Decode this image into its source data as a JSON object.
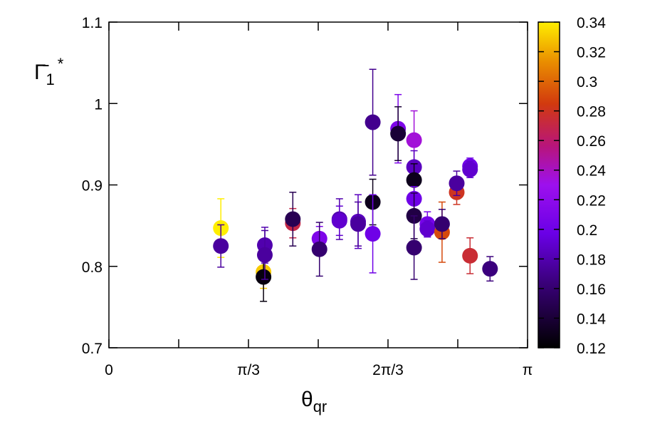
{
  "chart_data": {
    "type": "scatter",
    "title": "",
    "xlabel": {
      "main": "θ",
      "sub": "qr"
    },
    "ylabel": {
      "main": "Γ̄",
      "sub": "1",
      "sup": "*"
    },
    "xlim": [
      0,
      3.14159
    ],
    "ylim": [
      0.7,
      1.1
    ],
    "x_ticks": [
      {
        "value": 0,
        "label": "0"
      },
      {
        "value": 1.0472,
        "label": "π/3"
      },
      {
        "value": 2.0944,
        "label": "2π/3"
      },
      {
        "value": 3.14159,
        "label": "π"
      }
    ],
    "x_minor_ticks": [
      0.5236,
      1.5708,
      2.618
    ],
    "y_ticks": [
      {
        "value": 0.7,
        "label": "0.7"
      },
      {
        "value": 0.8,
        "label": "0.8"
      },
      {
        "value": 0.9,
        "label": "0.9"
      },
      {
        "value": 1.0,
        "label": "1"
      },
      {
        "value": 1.1,
        "label": "1.1"
      }
    ],
    "colorbar": {
      "range": [
        0.12,
        0.34
      ],
      "ticks": [
        {
          "value": 0.12,
          "label": "0.12"
        },
        {
          "value": 0.14,
          "label": "0.14"
        },
        {
          "value": 0.16,
          "label": "0.16"
        },
        {
          "value": 0.18,
          "label": "0.18"
        },
        {
          "value": 0.2,
          "label": "0.2"
        },
        {
          "value": 0.22,
          "label": "0.22"
        },
        {
          "value": 0.24,
          "label": "0.24"
        },
        {
          "value": 0.26,
          "label": "0.26"
        },
        {
          "value": 0.28,
          "label": "0.28"
        },
        {
          "value": 0.3,
          "label": "0.3"
        },
        {
          "value": 0.32,
          "label": "0.32"
        },
        {
          "value": 0.34,
          "label": "0.34"
        }
      ],
      "palette": "black-purple-red-yellow"
    },
    "grid": false,
    "points": [
      {
        "x": 0.84,
        "y": 0.847,
        "err": 0.036,
        "c": 0.34
      },
      {
        "x": 0.84,
        "y": 0.825,
        "err": 0.026,
        "c": 0.175
      },
      {
        "x": 1.16,
        "y": 0.793,
        "err": 0.02,
        "c": 0.33
      },
      {
        "x": 1.16,
        "y": 0.787,
        "err": 0.03,
        "c": 0.125
      },
      {
        "x": 1.17,
        "y": 0.826,
        "err": 0.022,
        "c": 0.18
      },
      {
        "x": 1.17,
        "y": 0.814,
        "err": 0.03,
        "c": 0.175
      },
      {
        "x": 1.38,
        "y": 0.853,
        "err": 0.018,
        "c": 0.27
      },
      {
        "x": 1.38,
        "y": 0.858,
        "err": 0.033,
        "c": 0.15
      },
      {
        "x": 1.58,
        "y": 0.834,
        "err": 0.015,
        "c": 0.21
      },
      {
        "x": 1.58,
        "y": 0.821,
        "err": 0.033,
        "c": 0.16
      },
      {
        "x": 1.73,
        "y": 0.858,
        "err": 0.025,
        "c": 0.18
      },
      {
        "x": 1.73,
        "y": 0.856,
        "err": 0.018,
        "c": 0.19
      },
      {
        "x": 1.87,
        "y": 0.855,
        "err": 0.033,
        "c": 0.185
      },
      {
        "x": 1.87,
        "y": 0.852,
        "err": 0.027,
        "c": 0.175
      },
      {
        "x": 1.98,
        "y": 0.977,
        "err": 0.065,
        "c": 0.17
      },
      {
        "x": 1.98,
        "y": 0.879,
        "err": 0.028,
        "c": 0.13
      },
      {
        "x": 1.98,
        "y": 0.84,
        "err": 0.048,
        "c": 0.2
      },
      {
        "x": 2.17,
        "y": 0.969,
        "err": 0.042,
        "c": 0.21
      },
      {
        "x": 2.17,
        "y": 0.963,
        "err": 0.033,
        "c": 0.14
      },
      {
        "x": 2.29,
        "y": 0.955,
        "err": 0.036,
        "c": 0.235
      },
      {
        "x": 2.29,
        "y": 0.922,
        "err": 0.02,
        "c": 0.185
      },
      {
        "x": 2.29,
        "y": 0.906,
        "err": 0.02,
        "c": 0.13
      },
      {
        "x": 2.29,
        "y": 0.883,
        "err": 0.015,
        "c": 0.2
      },
      {
        "x": 2.29,
        "y": 0.862,
        "err": 0.028,
        "c": 0.145
      },
      {
        "x": 2.29,
        "y": 0.823,
        "err": 0.039,
        "c": 0.16
      },
      {
        "x": 2.39,
        "y": 0.852,
        "err": 0.015,
        "c": 0.205
      },
      {
        "x": 2.39,
        "y": 0.846,
        "err": 0.01,
        "c": 0.19
      },
      {
        "x": 2.5,
        "y": 0.842,
        "err": 0.037,
        "c": 0.29
      },
      {
        "x": 2.5,
        "y": 0.852,
        "err": 0.018,
        "c": 0.16
      },
      {
        "x": 2.61,
        "y": 0.891,
        "err": 0.015,
        "c": 0.28
      },
      {
        "x": 2.61,
        "y": 0.902,
        "err": 0.015,
        "c": 0.175
      },
      {
        "x": 2.71,
        "y": 0.923,
        "err": 0.01,
        "c": 0.2
      },
      {
        "x": 2.71,
        "y": 0.919,
        "err": 0.01,
        "c": 0.19
      },
      {
        "x": 2.71,
        "y": 0.813,
        "err": 0.022,
        "c": 0.275
      },
      {
        "x": 2.86,
        "y": 0.797,
        "err": 0.015,
        "c": 0.165
      }
    ]
  }
}
